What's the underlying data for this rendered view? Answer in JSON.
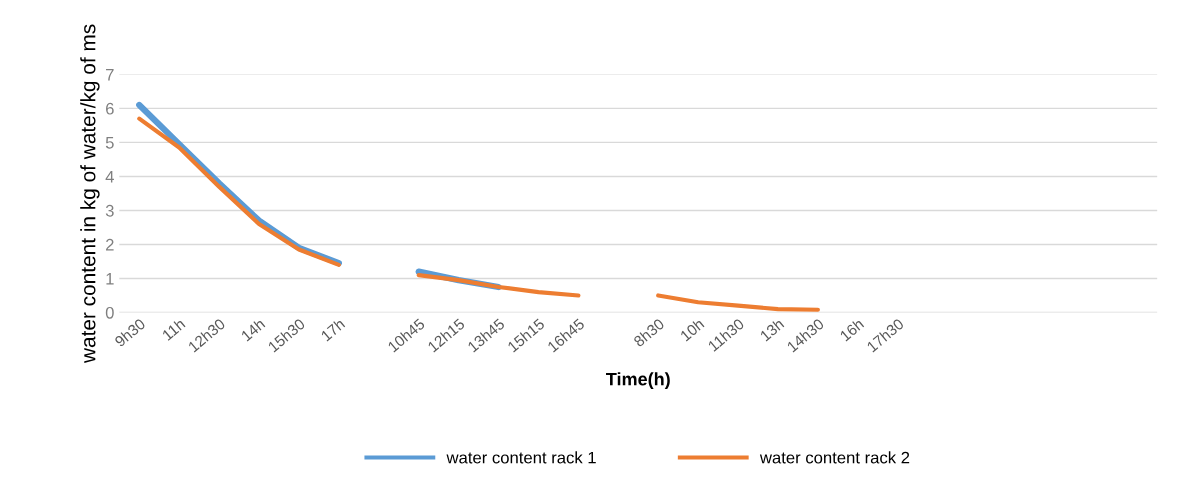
{
  "chart_data": {
    "type": "line",
    "xlabel": "Time(h)",
    "ylabel": "water content in kg of water/kg of ms",
    "categories": [
      "9h30",
      "11h",
      "12h30",
      "14h",
      "15h30",
      "17h",
      null,
      "10h45",
      "12h15",
      "13h45",
      "15h15",
      "16h45",
      null,
      "8h30",
      "10h",
      "11h30",
      "13h",
      "14h30",
      "16h",
      "17h30",
      null,
      null,
      null,
      null,
      null,
      null
    ],
    "series": [
      {
        "name": "water content rack 1",
        "color": "#5b9bd5",
        "values": [
          6.1,
          4.95,
          3.8,
          2.7,
          1.9,
          1.45,
          null,
          1.2,
          0.95,
          0.75,
          null,
          null,
          null,
          null,
          null,
          null,
          null,
          null,
          null,
          null,
          null,
          null,
          null,
          null,
          null,
          null
        ]
      },
      {
        "name": "water content rack 2",
        "color": "#ed7d31",
        "values": [
          5.7,
          4.85,
          3.7,
          2.6,
          1.85,
          1.4,
          null,
          1.1,
          0.95,
          0.75,
          0.6,
          0.5,
          null,
          0.5,
          0.3,
          0.2,
          0.1,
          0.08,
          null,
          null,
          null,
          null,
          null,
          null,
          null,
          null
        ]
      }
    ],
    "ylim": [
      0,
      7
    ],
    "yticks": [
      0,
      1,
      2,
      3,
      4,
      5,
      6,
      7
    ],
    "grid": "y",
    "legend": "bottom",
    "marker": "none",
    "line_style": "solid"
  }
}
